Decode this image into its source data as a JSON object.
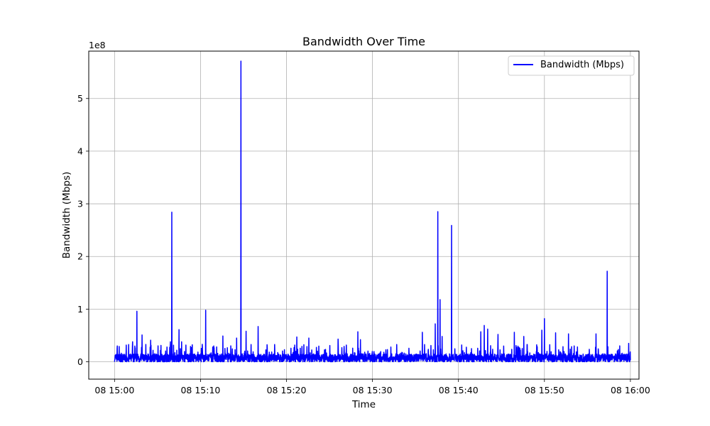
{
  "chart_data": {
    "type": "line",
    "title": "Bandwidth Over Time",
    "xlabel": "Time",
    "ylabel": "Bandwidth (Mbps)",
    "y_offset_label": "1e8",
    "ylim": [
      -0.33,
      5.9
    ],
    "xlim_minutes": [
      -3,
      61
    ],
    "grid": true,
    "legend_position": "upper right",
    "x_ticks": [
      {
        "minute": 0,
        "label": "08 15:00"
      },
      {
        "minute": 10,
        "label": "08 15:10"
      },
      {
        "minute": 20,
        "label": "08 15:20"
      },
      {
        "minute": 30,
        "label": "08 15:30"
      },
      {
        "minute": 40,
        "label": "08 15:40"
      },
      {
        "minute": 50,
        "label": "08 15:50"
      },
      {
        "minute": 60,
        "label": "08 16:00"
      }
    ],
    "y_ticks": [
      {
        "value": 0,
        "label": "0"
      },
      {
        "value": 1,
        "label": "1"
      },
      {
        "value": 2,
        "label": "2"
      },
      {
        "value": 3,
        "label": "3"
      },
      {
        "value": 4,
        "label": "4"
      },
      {
        "value": 5,
        "label": "5"
      }
    ],
    "series": [
      {
        "name": "Bandwidth (Mbps)",
        "color": "#0000ff",
        "baseline_level": 0.15,
        "spikes": [
          {
            "minute": 0.3,
            "value": 0.25
          },
          {
            "minute": 2.1,
            "value": 0.38
          },
          {
            "minute": 2.6,
            "value": 0.96
          },
          {
            "minute": 3.2,
            "value": 0.51
          },
          {
            "minute": 4.2,
            "value": 0.41
          },
          {
            "minute": 6.5,
            "value": 0.38
          },
          {
            "minute": 6.65,
            "value": 2.84
          },
          {
            "minute": 7.5,
            "value": 0.61
          },
          {
            "minute": 7.8,
            "value": 0.38
          },
          {
            "minute": 10.2,
            "value": 0.33
          },
          {
            "minute": 10.6,
            "value": 0.98
          },
          {
            "minute": 12.6,
            "value": 0.49
          },
          {
            "minute": 14.2,
            "value": 0.45
          },
          {
            "minute": 14.7,
            "value": 5.71
          },
          {
            "minute": 15.3,
            "value": 0.58
          },
          {
            "minute": 16.7,
            "value": 0.67
          },
          {
            "minute": 21.2,
            "value": 0.47
          },
          {
            "minute": 22.6,
            "value": 0.45
          },
          {
            "minute": 26.0,
            "value": 0.43
          },
          {
            "minute": 28.3,
            "value": 0.57
          },
          {
            "minute": 28.6,
            "value": 0.42
          },
          {
            "minute": 35.8,
            "value": 0.56
          },
          {
            "minute": 37.3,
            "value": 0.72
          },
          {
            "minute": 37.6,
            "value": 2.85
          },
          {
            "minute": 37.85,
            "value": 1.18
          },
          {
            "minute": 38.1,
            "value": 0.48
          },
          {
            "minute": 39.2,
            "value": 2.59
          },
          {
            "minute": 42.6,
            "value": 0.57
          },
          {
            "minute": 43.0,
            "value": 0.69
          },
          {
            "minute": 43.4,
            "value": 0.62
          },
          {
            "minute": 44.6,
            "value": 0.52
          },
          {
            "minute": 46.5,
            "value": 0.56
          },
          {
            "minute": 47.6,
            "value": 0.48
          },
          {
            "minute": 49.7,
            "value": 0.6
          },
          {
            "minute": 50.0,
            "value": 0.82
          },
          {
            "minute": 51.3,
            "value": 0.55
          },
          {
            "minute": 52.8,
            "value": 0.53
          },
          {
            "minute": 56.0,
            "value": 0.53
          },
          {
            "minute": 57.3,
            "value": 1.72
          },
          {
            "minute": 59.8,
            "value": 0.35
          }
        ]
      }
    ]
  }
}
